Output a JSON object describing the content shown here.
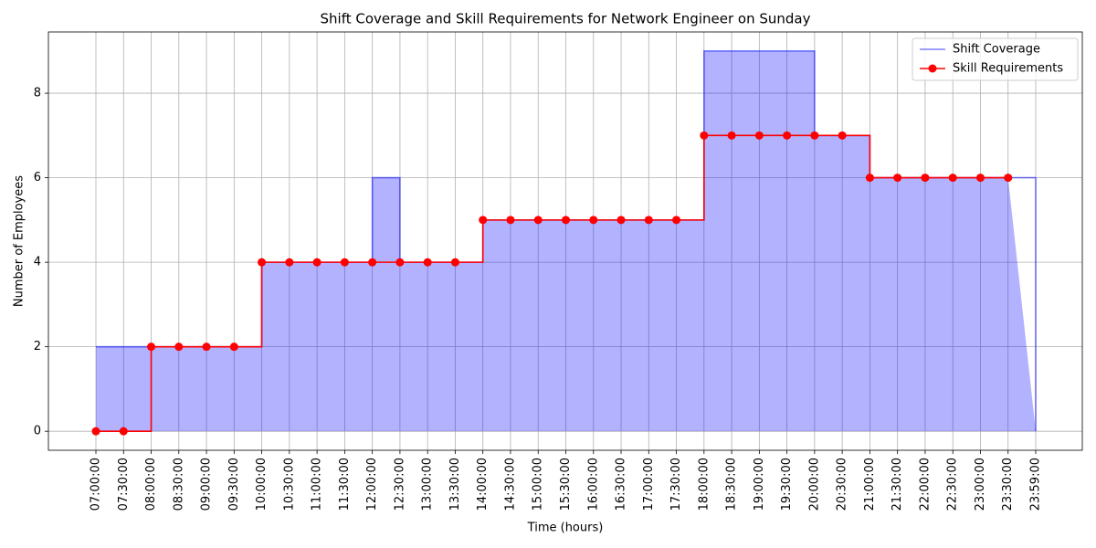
{
  "chart_data": {
    "type": "line",
    "drawstyle": "steps-post",
    "title": "Shift Coverage and Skill Requirements for Network Engineer on Sunday",
    "xlabel": "Time (hours)",
    "ylabel": "Number of Employees",
    "categories": [
      "07:00:00",
      "07:30:00",
      "08:00:00",
      "08:30:00",
      "09:00:00",
      "09:30:00",
      "10:00:00",
      "10:30:00",
      "11:00:00",
      "11:30:00",
      "12:00:00",
      "12:30:00",
      "13:00:00",
      "13:30:00",
      "14:00:00",
      "14:30:00",
      "15:00:00",
      "15:30:00",
      "16:00:00",
      "16:30:00",
      "17:00:00",
      "17:30:00",
      "18:00:00",
      "18:30:00",
      "19:00:00",
      "19:30:00",
      "20:00:00",
      "20:30:00",
      "21:00:00",
      "21:30:00",
      "22:00:00",
      "22:30:00",
      "23:00:00",
      "23:30:00",
      "23:59:00"
    ],
    "series": [
      {
        "name": "Shift Coverage",
        "color": "#0000ff",
        "fill": true,
        "values": [
          2,
          2,
          2,
          2,
          2,
          2,
          4,
          4,
          4,
          4,
          6,
          4,
          4,
          4,
          5,
          5,
          5,
          5,
          5,
          5,
          5,
          5,
          9,
          9,
          9,
          9,
          7,
          7,
          6,
          6,
          6,
          6,
          6,
          6,
          0
        ]
      },
      {
        "name": "Skill Requirements",
        "color": "#ff0000",
        "marker": "o",
        "values": [
          0,
          0,
          2,
          2,
          2,
          2,
          4,
          4,
          4,
          4,
          4,
          4,
          4,
          4,
          5,
          5,
          5,
          5,
          5,
          5,
          5,
          5,
          7,
          7,
          7,
          7,
          7,
          7,
          6,
          6,
          6,
          6,
          6,
          6,
          null
        ]
      }
    ],
    "ylim": [
      -0.45,
      9.45
    ],
    "yticks": [
      0,
      2,
      4,
      6,
      8
    ],
    "grid": true,
    "legend": "upper right"
  }
}
